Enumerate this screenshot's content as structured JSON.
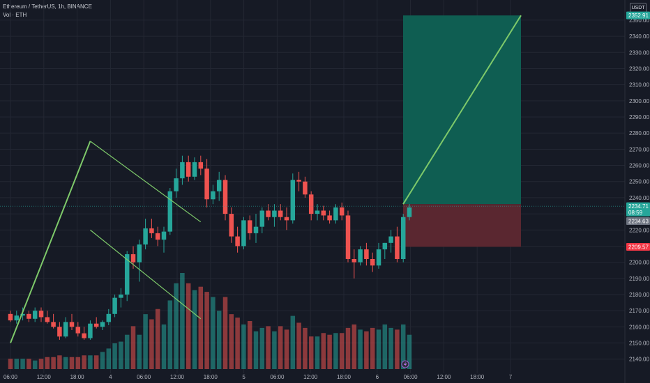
{
  "legend": {
    "title": "Ethereum / TetherUS, 1h, BINANCE",
    "volume": "Vol · ETH"
  },
  "currency_button": "USDT",
  "colors": {
    "background": "#161a25",
    "grid": "#232733",
    "up": "#26a69a",
    "down": "#ef5350",
    "trend": "#7ec96a",
    "target_zone": "#0f5e52",
    "stop_zone": "#5a2730"
  },
  "chart_data": {
    "type": "candlestick",
    "title": "Ethereum / TetherUS, 1h, BINANCE",
    "xlabel": "",
    "ylabel": "",
    "x_ticks": [
      "06:00",
      "12:00",
      "18:00",
      "4",
      "06:00",
      "12:00",
      "18:00",
      "5",
      "06:00",
      "12:00",
      "18:00",
      "6",
      "06:00",
      "12:00",
      "18:00",
      "7"
    ],
    "y_ticks": [
      2140,
      2150,
      2160,
      2170,
      2180,
      2190,
      2200,
      2210,
      2220,
      2230,
      2240,
      2250,
      2260,
      2270,
      2280,
      2290,
      2300,
      2310,
      2320,
      2330,
      2340,
      2350
    ],
    "ylim": [
      2136,
      2356
    ],
    "grid": true,
    "candles_ohlc": [
      [
        2168,
        2170,
        2163,
        2164
      ],
      [
        2164,
        2170,
        2162,
        2167
      ],
      [
        2167,
        2172,
        2164,
        2168
      ],
      [
        2168,
        2170,
        2163,
        2165
      ],
      [
        2165,
        2172,
        2163,
        2170
      ],
      [
        2170,
        2172,
        2163,
        2166
      ],
      [
        2166,
        2170,
        2162,
        2163
      ],
      [
        2163,
        2168,
        2159,
        2160
      ],
      [
        2160,
        2163,
        2152,
        2154
      ],
      [
        2154,
        2166,
        2153,
        2163
      ],
      [
        2163,
        2168,
        2158,
        2160
      ],
      [
        2160,
        2163,
        2154,
        2156
      ],
      [
        2156,
        2160,
        2152,
        2153
      ],
      [
        2153,
        2164,
        2152,
        2162
      ],
      [
        2162,
        2166,
        2159,
        2160
      ],
      [
        2160,
        2164,
        2158,
        2163
      ],
      [
        2163,
        2171,
        2161,
        2168
      ],
      [
        2168,
        2180,
        2166,
        2178
      ],
      [
        2178,
        2184,
        2172,
        2180
      ],
      [
        2180,
        2207,
        2176,
        2205
      ],
      [
        2205,
        2210,
        2196,
        2200
      ],
      [
        2200,
        2214,
        2188,
        2211
      ],
      [
        2211,
        2227,
        2208,
        2221
      ],
      [
        2221,
        2227,
        2215,
        2218
      ],
      [
        2218,
        2222,
        2210,
        2214
      ],
      [
        2214,
        2222,
        2206,
        2219
      ],
      [
        2219,
        2246,
        2217,
        2244
      ],
      [
        2244,
        2258,
        2240,
        2252
      ],
      [
        2252,
        2266,
        2248,
        2262
      ],
      [
        2262,
        2266,
        2250,
        2253
      ],
      [
        2253,
        2265,
        2251,
        2262
      ],
      [
        2262,
        2266,
        2254,
        2258
      ],
      [
        2258,
        2264,
        2234,
        2239
      ],
      [
        2239,
        2248,
        2236,
        2244
      ],
      [
        2244,
        2256,
        2238,
        2251
      ],
      [
        2251,
        2254,
        2226,
        2230
      ],
      [
        2230,
        2234,
        2212,
        2216
      ],
      [
        2216,
        2222,
        2206,
        2210
      ],
      [
        2210,
        2228,
        2208,
        2226
      ],
      [
        2226,
        2229,
        2214,
        2218
      ],
      [
        2218,
        2230,
        2212,
        2222
      ],
      [
        2222,
        2234,
        2218,
        2232
      ],
      [
        2232,
        2236,
        2226,
        2228
      ],
      [
        2228,
        2236,
        2222,
        2232
      ],
      [
        2232,
        2236,
        2226,
        2228
      ],
      [
        2228,
        2234,
        2220,
        2226
      ],
      [
        2226,
        2255,
        2224,
        2251
      ],
      [
        2251,
        2256,
        2244,
        2250
      ],
      [
        2250,
        2253,
        2240,
        2242
      ],
      [
        2242,
        2244,
        2226,
        2230
      ],
      [
        2230,
        2236,
        2226,
        2232
      ],
      [
        2232,
        2235,
        2226,
        2229
      ],
      [
        2229,
        2232,
        2224,
        2226
      ],
      [
        2226,
        2236,
        2224,
        2234
      ],
      [
        2234,
        2237,
        2226,
        2229
      ],
      [
        2229,
        2232,
        2200,
        2202
      ],
      [
        2202,
        2208,
        2190,
        2200
      ],
      [
        2200,
        2210,
        2198,
        2208
      ],
      [
        2208,
        2212,
        2198,
        2202
      ],
      [
        2202,
        2206,
        2194,
        2198
      ],
      [
        2198,
        2212,
        2196,
        2208
      ],
      [
        2208,
        2212,
        2202,
        2212
      ],
      [
        2212,
        2220,
        2206,
        2216
      ],
      [
        2216,
        2222,
        2200,
        2202
      ],
      [
        2202,
        2230,
        2200,
        2228
      ],
      [
        2228,
        2236,
        2226,
        2234
      ]
    ],
    "volume": [
      0.6,
      0.6,
      0.6,
      0.6,
      0.5,
      0.6,
      0.7,
      0.7,
      0.8,
      0.7,
      0.7,
      0.7,
      0.8,
      0.8,
      0.8,
      1.0,
      1.2,
      1.5,
      1.6,
      2.0,
      2.5,
      2.0,
      3.2,
      2.9,
      3.5,
      2.6,
      4.0,
      5.0,
      5.6,
      5.0,
      4.6,
      4.8,
      4.5,
      4.2,
      3.4,
      4.2,
      3.2,
      3.0,
      2.6,
      2.8,
      2.2,
      2.4,
      2.5,
      2.2,
      2.5,
      2.3,
      3.1,
      2.7,
      2.4,
      1.9,
      1.9,
      2.1,
      2.0,
      2.1,
      2.1,
      2.4,
      2.6,
      2.3,
      2.2,
      2.4,
      2.3,
      2.6,
      2.4,
      2.3,
      2.6,
      2.0
    ],
    "volume_scale_max": 5.6,
    "drawings": {
      "impulse_line": [
        [
          0,
          2150
        ],
        [
          13,
          2275
        ]
      ],
      "upper_channel": [
        [
          13,
          2275
        ],
        [
          31,
          2225
        ]
      ],
      "lower_channel": [
        [
          13,
          2220
        ],
        [
          31,
          2165
        ]
      ],
      "projection_line": [
        [
          28.3,
          2236
        ],
        [
          35.4,
          2352.91
        ]
      ],
      "target_zone": {
        "from": 2236,
        "to": 2352.91
      },
      "stop_zone": {
        "from": 2209.57,
        "to": 2236
      }
    },
    "price_tags": [
      {
        "label": "2352.91",
        "value": 2352.91,
        "color": "#26a69a"
      },
      {
        "label": "2234.71",
        "value": 2234.71,
        "color": "#26a69a",
        "sub": "08:59"
      },
      {
        "label": "2234.63",
        "value": 2225.5,
        "color": "#6d7380"
      },
      {
        "label": "2209.57",
        "value": 2209.57,
        "color": "#f23645"
      }
    ]
  }
}
